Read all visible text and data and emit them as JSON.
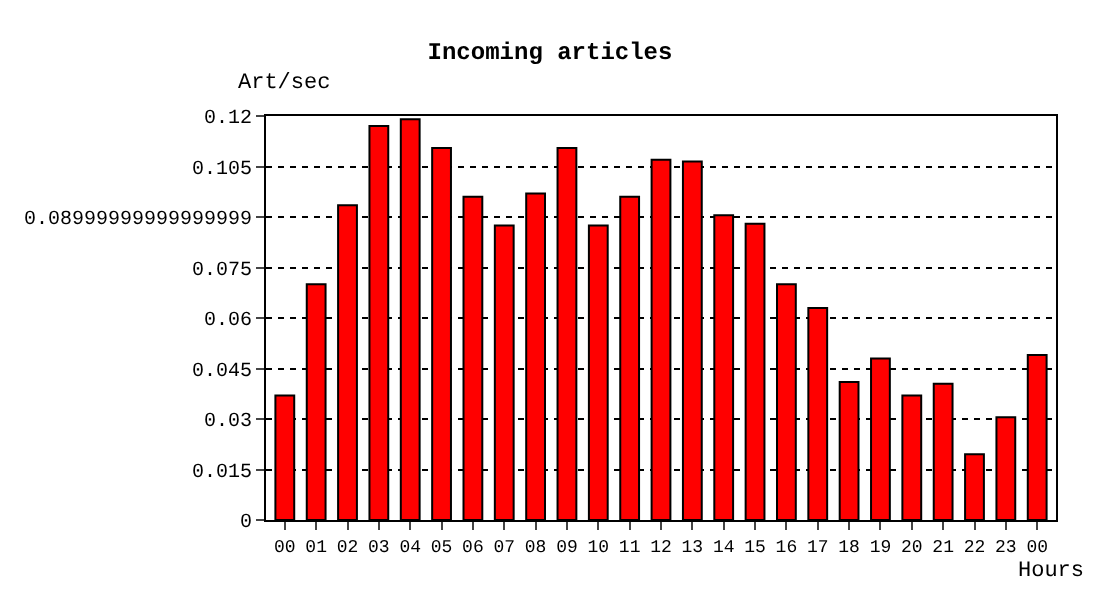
{
  "chart_data": {
    "type": "bar",
    "title": "Incoming articles",
    "ylabel": "Art/sec",
    "xlabel": "Hours",
    "categories": [
      "00",
      "01",
      "02",
      "03",
      "04",
      "05",
      "06",
      "07",
      "08",
      "09",
      "10",
      "11",
      "12",
      "13",
      "14",
      "15",
      "16",
      "17",
      "18",
      "19",
      "20",
      "21",
      "22",
      "23",
      "00"
    ],
    "values": [
      0.037,
      0.07,
      0.0935,
      0.117,
      0.119,
      0.1105,
      0.096,
      0.0875,
      0.097,
      0.1105,
      0.0875,
      0.096,
      0.107,
      0.1065,
      0.0905,
      0.088,
      0.07,
      0.063,
      0.041,
      0.048,
      0.037,
      0.0405,
      0.0195,
      0.0305,
      0.049
    ],
    "color": "#ff0000",
    "ylim": [
      0,
      0.12
    ],
    "yticks": [
      0,
      0.015,
      0.03,
      0.045,
      0.06,
      0.075,
      {
        "value": 0.09,
        "label": "0.08999999999999999"
      },
      0.105,
      0.12
    ],
    "grid": "y"
  }
}
